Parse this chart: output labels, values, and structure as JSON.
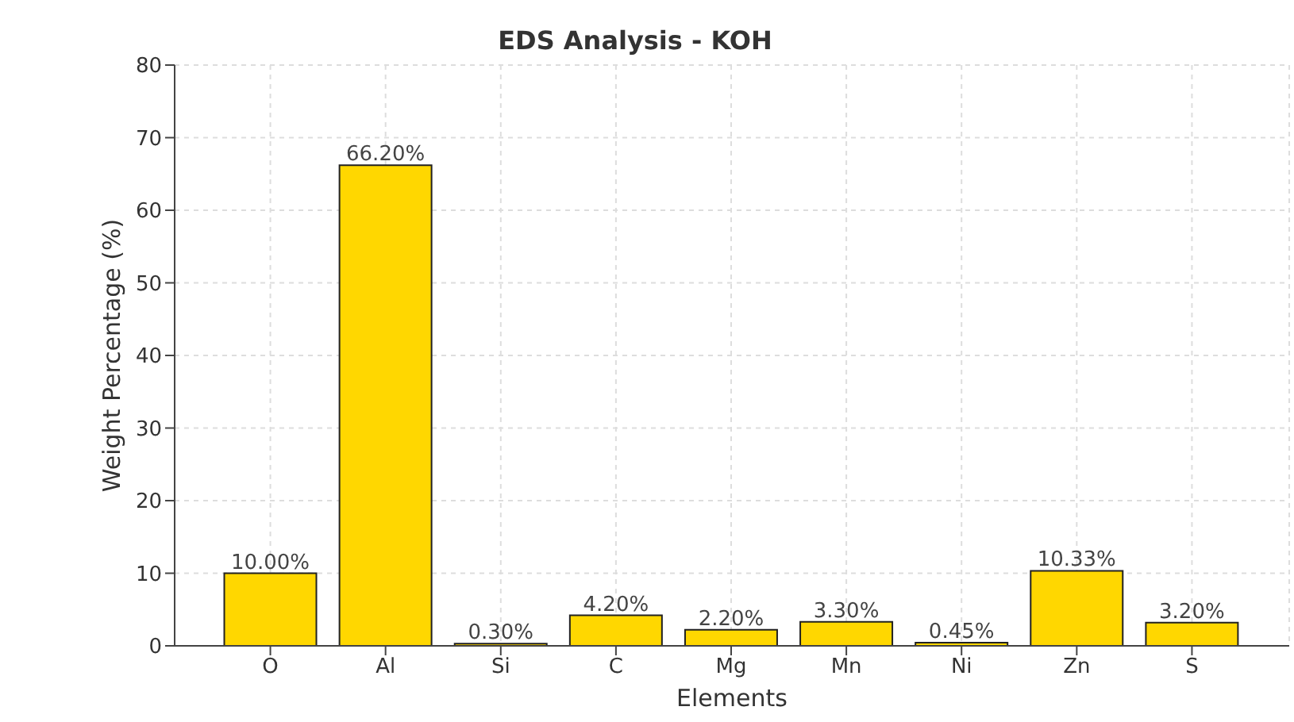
{
  "chart_data": {
    "type": "bar",
    "title": "EDS Analysis - KOH",
    "xlabel": "Elements",
    "ylabel": "Weight Percentage (%)",
    "categories": [
      "O",
      "Al",
      "Si",
      "C",
      "Mg",
      "Mn",
      "Ni",
      "Zn",
      "S"
    ],
    "values": [
      10,
      66.2,
      0.3,
      4.2,
      2.2,
      3.3,
      0.45,
      10.33,
      3.2
    ],
    "value_labels": [
      "10.00%",
      "66.20%",
      "0.30%",
      "4.20%",
      "2.20%",
      "3.30%",
      "0.45%",
      "10.33%",
      "3.20%"
    ],
    "color": "#ffd700",
    "ylim": [
      0,
      80
    ],
    "yticks": [
      0,
      10,
      20,
      30,
      40,
      50,
      60,
      70,
      80
    ],
    "grid": true
  }
}
